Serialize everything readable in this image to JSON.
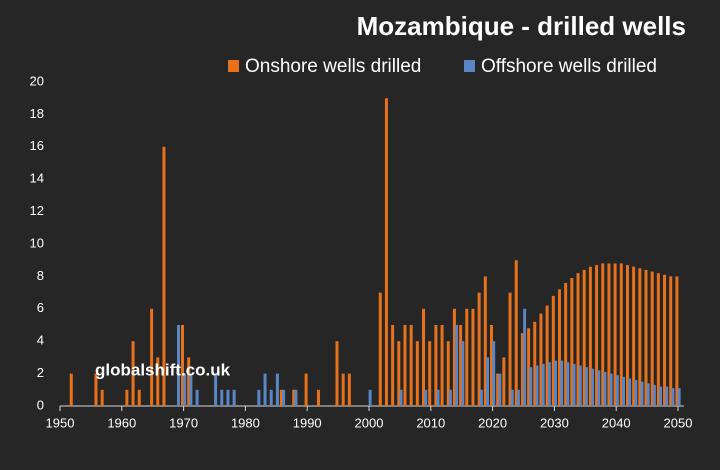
{
  "chart_data": {
    "type": "bar",
    "title": "Mozambique - drilled wells",
    "annotation": "globalshift.co.uk",
    "x": [
      1952,
      1956,
      1957,
      1961,
      1962,
      1963,
      1965,
      1966,
      1967,
      1969,
      1970,
      1971,
      1972,
      1975,
      1976,
      1977,
      1978,
      1982,
      1983,
      1984,
      1985,
      1986,
      1988,
      1990,
      1992,
      1995,
      1996,
      1997,
      2000,
      2002,
      2003,
      2004,
      2005,
      2006,
      2007,
      2008,
      2009,
      2010,
      2011,
      2012,
      2013,
      2014,
      2015,
      2016,
      2017,
      2018,
      2019,
      2020,
      2021,
      2022,
      2023,
      2024,
      2025,
      2026,
      2027,
      2028,
      2029,
      2030,
      2031,
      2032,
      2033,
      2034,
      2035,
      2036,
      2037,
      2038,
      2039,
      2040,
      2041,
      2042,
      2043,
      2044,
      2045,
      2046,
      2047,
      2048,
      2049,
      2050
    ],
    "series": [
      {
        "name": "Onshore wells drilled",
        "color": "#e8711c",
        "values": [
          2,
          2,
          1,
          1,
          4,
          1,
          6,
          3,
          16,
          null,
          5,
          3,
          null,
          null,
          null,
          null,
          null,
          null,
          null,
          null,
          null,
          1,
          1,
          2,
          1,
          4,
          2,
          2,
          null,
          7,
          19,
          5,
          4,
          5,
          5,
          4,
          6,
          4,
          5,
          5,
          4,
          6,
          5,
          6,
          6,
          7,
          8,
          5,
          2,
          3,
          7,
          9,
          4.5,
          4.8,
          5.2,
          5.7,
          6.2,
          6.8,
          7.2,
          7.6,
          7.9,
          8.2,
          8.4,
          8.6,
          8.7,
          8.8,
          8.8,
          8.8,
          8.8,
          8.7,
          8.6,
          8.5,
          8.4,
          8.3,
          8.2,
          8.1,
          8.0,
          8.0
        ]
      },
      {
        "name": "Offshore wells drilled",
        "color": "#5b86c4",
        "values": [
          null,
          null,
          null,
          null,
          null,
          null,
          null,
          null,
          null,
          5,
          2,
          2,
          1,
          2,
          1,
          1,
          1,
          1,
          2,
          1,
          2,
          1,
          1,
          null,
          null,
          null,
          null,
          null,
          1,
          null,
          null,
          null,
          1,
          null,
          null,
          null,
          1,
          null,
          1,
          null,
          1,
          5,
          4,
          null,
          null,
          1,
          3,
          4,
          2,
          null,
          1,
          1,
          6,
          2.4,
          2.5,
          2.6,
          2.7,
          2.8,
          2.8,
          2.7,
          2.6,
          2.5,
          2.4,
          2.3,
          2.2,
          2.1,
          2.0,
          1.9,
          1.8,
          1.7,
          1.6,
          1.5,
          1.4,
          1.3,
          1.2,
          1.2,
          1.1,
          1.1
        ]
      }
    ],
    "xlim": [
      1950,
      2050
    ],
    "xticks": [
      1950,
      1960,
      1970,
      1980,
      1990,
      2000,
      2010,
      2020,
      2030,
      2040,
      2050
    ],
    "ylim": [
      0,
      20
    ],
    "yticks": [
      0,
      2,
      4,
      6,
      8,
      10,
      12,
      14,
      16,
      18,
      20
    ],
    "grid": false
  }
}
